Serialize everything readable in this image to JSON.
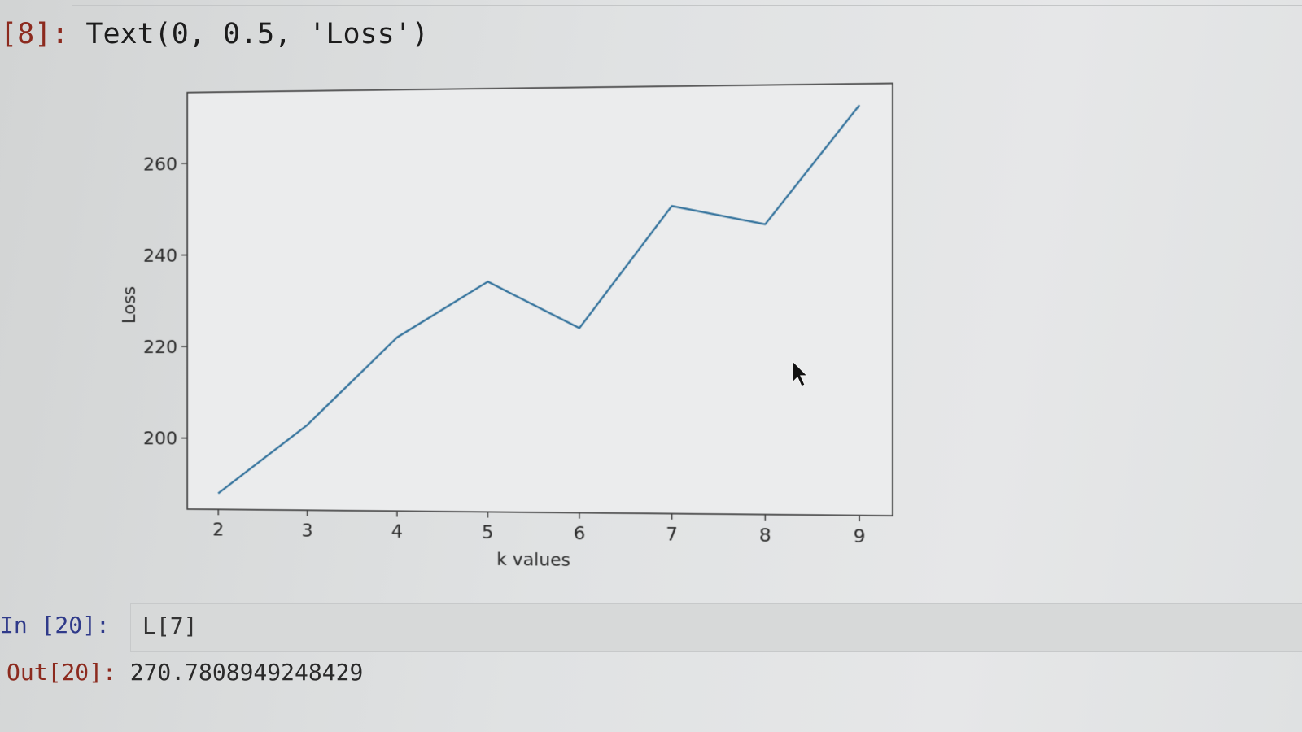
{
  "cell8": {
    "prompt": "[8]:",
    "output": "Text(0, 0.5, 'Loss')"
  },
  "cell20": {
    "in_prompt": "In [20]:",
    "code": "L[7]",
    "out_prompt": "Out[20]:",
    "out_value": "270.7808949248429"
  },
  "colors": {
    "line": "#2e6f9a",
    "prompt_red": "#8c2a1e",
    "prompt_blue": "#2f3a8a"
  },
  "icons": {
    "cursor": "mouse-pointer-icon"
  },
  "chart_data": {
    "type": "line",
    "x": [
      2,
      3,
      4,
      5,
      6,
      7,
      8,
      9
    ],
    "values": [
      188,
      203,
      222,
      234,
      224,
      250,
      246,
      271
    ],
    "xlabel": "k values",
    "ylabel": "Loss",
    "xticks": [
      "2",
      "3",
      "4",
      "5",
      "6",
      "7",
      "8",
      "9"
    ],
    "yticks": [
      "200",
      "220",
      "240",
      "260"
    ],
    "xlim": [
      1.65,
      9.35
    ],
    "ylim": [
      184.5,
      275.5
    ],
    "grid": false
  }
}
